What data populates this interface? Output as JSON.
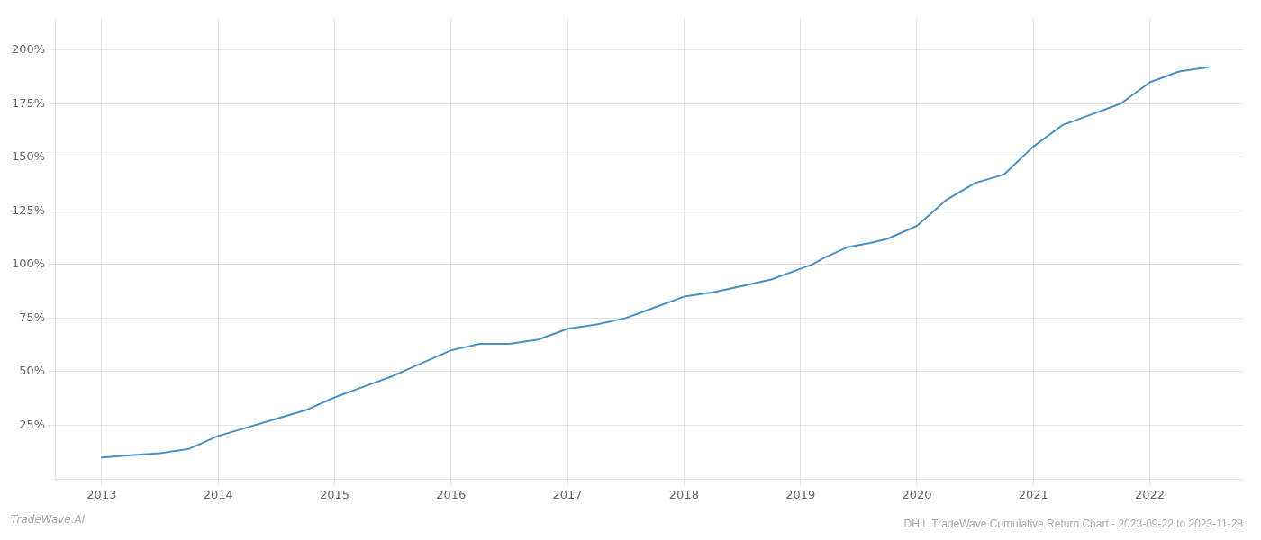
{
  "chart_data": {
    "type": "line",
    "title": "DHIL TradeWave Cumulative Return Chart - 2023-09-22 to 2023-11-28",
    "annotations": [
      "TradeWave.AI"
    ],
    "color": "#4a90c4",
    "x": [
      2013.0,
      2013.25,
      2013.5,
      2013.75,
      2014.0,
      2014.25,
      2014.5,
      2014.75,
      2015.0,
      2015.25,
      2015.5,
      2015.75,
      2016.0,
      2016.25,
      2016.5,
      2016.75,
      2017.0,
      2017.25,
      2017.5,
      2017.75,
      2018.0,
      2018.25,
      2018.5,
      2018.75,
      2019.0,
      2019.1,
      2019.2,
      2019.4,
      2019.6,
      2019.75,
      2020.0,
      2020.25,
      2020.5,
      2020.75,
      2021.0,
      2021.25,
      2021.5,
      2021.75,
      2022.0,
      2022.25,
      2022.5
    ],
    "values": [
      10,
      11,
      12,
      14,
      20,
      24,
      28,
      32,
      38,
      43,
      48,
      54,
      60,
      63,
      63,
      65,
      70,
      72,
      75,
      80,
      85,
      87,
      90,
      93,
      98,
      100,
      103,
      108,
      110,
      112,
      118,
      130,
      138,
      142,
      155,
      165,
      170,
      175,
      185,
      190,
      192
    ],
    "xlim": [
      2012.6,
      2022.8
    ],
    "ylim": [
      0,
      215
    ],
    "xticks": [
      2013,
      2014,
      2015,
      2016,
      2017,
      2018,
      2019,
      2020,
      2021,
      2022
    ],
    "yticks": [
      {
        "value": 25,
        "label": "25%"
      },
      {
        "value": 50,
        "label": "50%"
      },
      {
        "value": 75,
        "label": "75%"
      },
      {
        "value": 100,
        "label": "100%"
      },
      {
        "value": 125,
        "label": "125%"
      },
      {
        "value": 150,
        "label": "150%"
      },
      {
        "value": 175,
        "label": "175%"
      },
      {
        "value": 200,
        "label": "200%"
      }
    ],
    "grid": true
  }
}
